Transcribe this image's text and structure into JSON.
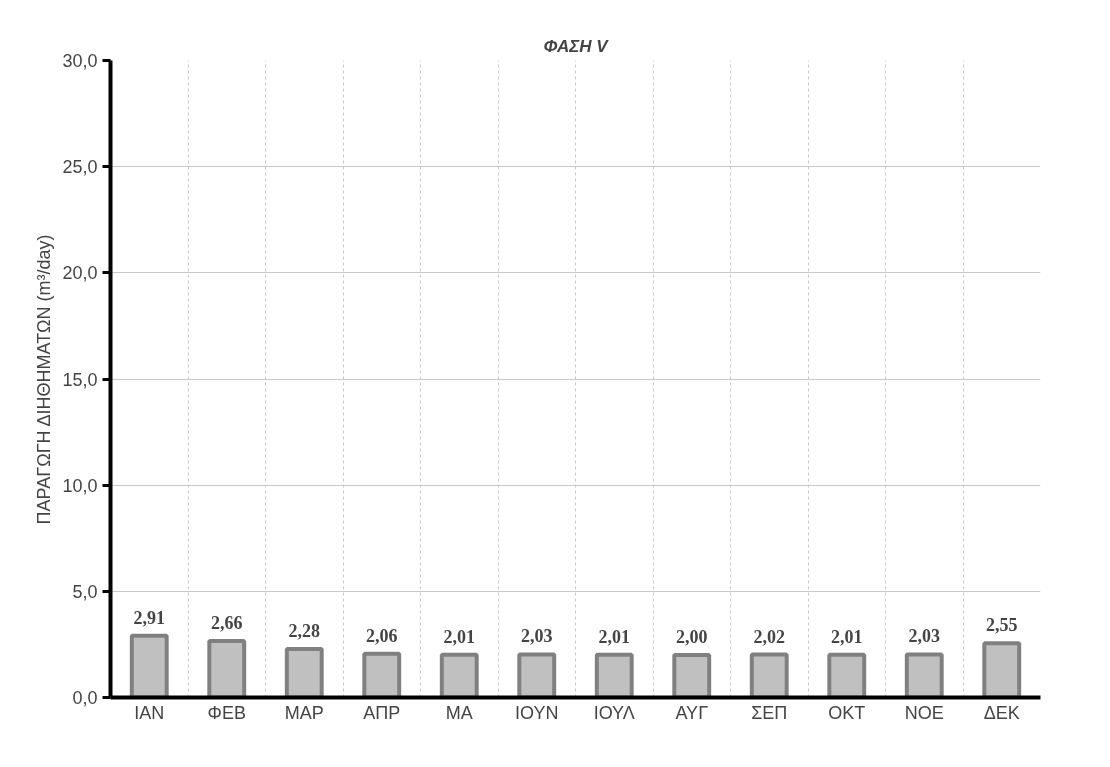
{
  "chart_data": {
    "type": "bar",
    "title": "ΦΑΣΗ V",
    "ylabel": "ΠΑΡΑΓΩΓΗ ΔΙΗΘΗΜΑΤΩΝ (m³/day)",
    "categories": [
      "ΙΑΝ",
      "ΦΕΒ",
      "ΜΑΡ",
      "ΑΠΡ",
      "ΜΑ",
      "ΙΟΥΝ",
      "ΙΟΥΛ",
      "ΑΥΓ",
      "ΣΕΠ",
      "ΟΚΤ",
      "ΝΟΕ",
      "ΔΕΚ"
    ],
    "values": [
      2.91,
      2.66,
      2.28,
      2.06,
      2.01,
      2.03,
      2.01,
      2.0,
      2.02,
      2.01,
      2.03,
      2.55
    ],
    "value_labels": [
      "2,91",
      "2,66",
      "2,28",
      "2,06",
      "2,01",
      "2,03",
      "2,01",
      "2,00",
      "2,02",
      "2,01",
      "2,03",
      "2,55"
    ],
    "color": "#c0c0c0",
    "ylim": [
      0,
      30
    ],
    "yticks": [
      {
        "value": 0,
        "label": "0,0"
      },
      {
        "value": 5,
        "label": "5,0"
      },
      {
        "value": 10,
        "label": "10,0"
      },
      {
        "value": 15,
        "label": "15,0"
      },
      {
        "value": 20,
        "label": "20,0"
      },
      {
        "value": 25,
        "label": "25,0"
      },
      {
        "value": 30,
        "label": "30,0"
      }
    ],
    "grid": true
  }
}
